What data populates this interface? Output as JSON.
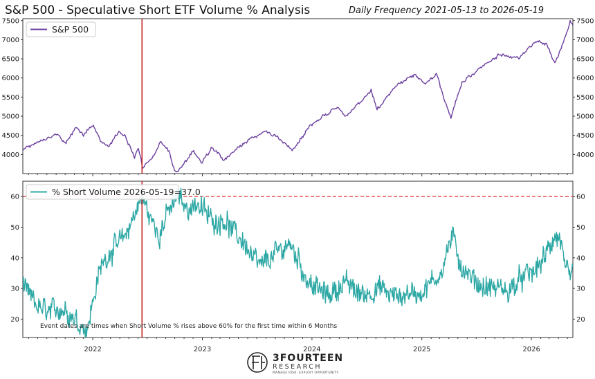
{
  "title": "S&P 500 - Speculative Short ETF Volume % Analysis",
  "subtitle": "Daily Frequency 2021-05-13 to 2026-05-19",
  "note": "Event dates are times when Short Volume % rises above 60% for the first time within 6 Months",
  "logo": {
    "name": "3FOURTEEN",
    "sub": "RESEARCH",
    "tagline": "MANAGE RISK. EXPLOIT OPPORTUNITY."
  },
  "colors": {
    "spx": "#6b3fa0",
    "short": "#2ea8a5",
    "event": "#c62828",
    "threshold": "#e53935"
  },
  "chart_data": [
    {
      "type": "line",
      "x_range": [
        "2021-05-13",
        "2026-05-19"
      ],
      "ylim": [
        3500,
        7550
      ],
      "y_ticks": [
        4000,
        4500,
        5000,
        5500,
        6000,
        6500,
        7000,
        7500
      ],
      "x_ticks": [
        "2022",
        "2023",
        "2024",
        "2025",
        "2026"
      ],
      "legend": "S&P 500",
      "legend_position": "top-left",
      "event_dates": [
        "2022-06-14"
      ],
      "series": [
        {
          "name": "S&P 500",
          "points": [
            [
              "2021-05-13",
              4110
            ],
            [
              "2021-06-15",
              4250
            ],
            [
              "2021-07-15",
              4360
            ],
            [
              "2021-08-15",
              4460
            ],
            [
              "2021-09-02",
              4530
            ],
            [
              "2021-10-04",
              4300
            ],
            [
              "2021-11-05",
              4700
            ],
            [
              "2021-12-01",
              4520
            ],
            [
              "2022-01-03",
              4790
            ],
            [
              "2022-01-27",
              4330
            ],
            [
              "2022-02-24",
              4230
            ],
            [
              "2022-03-29",
              4630
            ],
            [
              "2022-04-20",
              4460
            ],
            [
              "2022-05-20",
              3900
            ],
            [
              "2022-06-02",
              4180
            ],
            [
              "2022-06-16",
              3666
            ],
            [
              "2022-07-15",
              3860
            ],
            [
              "2022-08-16",
              4305
            ],
            [
              "2022-09-12",
              4110
            ],
            [
              "2022-09-30",
              3585
            ],
            [
              "2022-10-12",
              3577
            ],
            [
              "2022-11-30",
              4080
            ],
            [
              "2022-12-28",
              3783
            ],
            [
              "2023-02-02",
              4180
            ],
            [
              "2023-03-13",
              3855
            ],
            [
              "2023-04-28",
              4170
            ],
            [
              "2023-06-15",
              4425
            ],
            [
              "2023-07-31",
              4590
            ],
            [
              "2023-08-31",
              4500
            ],
            [
              "2023-10-27",
              4117
            ],
            [
              "2023-12-29",
              4770
            ],
            [
              "2024-03-28",
              5250
            ],
            [
              "2024-04-19",
              4967
            ],
            [
              "2024-07-16",
              5667
            ],
            [
              "2024-08-05",
              5186
            ],
            [
              "2024-10-18",
              5865
            ],
            [
              "2024-12-06",
              6090
            ],
            [
              "2025-01-13",
              5836
            ],
            [
              "2025-02-19",
              6144
            ],
            [
              "2025-03-13",
              5521
            ],
            [
              "2025-04-08",
              4982
            ],
            [
              "2025-05-15",
              5900
            ],
            [
              "2025-07-15",
              6250
            ],
            [
              "2025-09-15",
              6600
            ],
            [
              "2025-11-20",
              6540
            ],
            [
              "2026-01-15",
              6950
            ],
            [
              "2026-02-20",
              6900
            ],
            [
              "2026-03-20",
              6350
            ],
            [
              "2026-04-10",
              6800
            ],
            [
              "2026-04-30",
              7220
            ],
            [
              "2026-05-10",
              7460
            ],
            [
              "2026-05-19",
              7380
            ]
          ]
        }
      ]
    },
    {
      "type": "line",
      "x_range": [
        "2021-05-13",
        "2026-05-19"
      ],
      "ylim": [
        14,
        65
      ],
      "y_ticks": [
        20,
        30,
        40,
        50,
        60
      ],
      "x_ticks": [
        "2022",
        "2023",
        "2024",
        "2025",
        "2026"
      ],
      "legend": "% Short Volume 2026-05-19=37.0",
      "legend_position": "top-left",
      "threshold": 60,
      "event_dates": [
        "2022-06-14"
      ],
      "series": [
        {
          "name": "% Short Volume",
          "points": [
            [
              "2021-05-13",
              30
            ],
            [
              "2021-06-15",
              26
            ],
            [
              "2021-07-15",
              23
            ],
            [
              "2021-08-15",
              22
            ],
            [
              "2021-09-15",
              24
            ],
            [
              "2021-10-15",
              22
            ],
            [
              "2021-11-15",
              19
            ],
            [
              "2021-12-15",
              17
            ],
            [
              "2022-01-10",
              30
            ],
            [
              "2022-02-01",
              38
            ],
            [
              "2022-02-25",
              42
            ],
            [
              "2022-03-20",
              44
            ],
            [
              "2022-04-15",
              46
            ],
            [
              "2022-05-10",
              52
            ],
            [
              "2022-06-14",
              60
            ],
            [
              "2022-07-15",
              52
            ],
            [
              "2022-08-10",
              48
            ],
            [
              "2022-09-10",
              55
            ],
            [
              "2022-10-12",
              60
            ],
            [
              "2022-11-10",
              56
            ],
            [
              "2022-12-15",
              58
            ],
            [
              "2023-01-15",
              54
            ],
            [
              "2023-02-15",
              52
            ],
            [
              "2023-03-15",
              53
            ],
            [
              "2023-04-15",
              48
            ],
            [
              "2023-05-15",
              46
            ],
            [
              "2023-06-15",
              40
            ],
            [
              "2023-07-15",
              37
            ],
            [
              "2023-08-15",
              40
            ],
            [
              "2023-09-15",
              42
            ],
            [
              "2023-10-15",
              45
            ],
            [
              "2023-11-15",
              40
            ],
            [
              "2023-12-15",
              33
            ],
            [
              "2024-01-15",
              30
            ],
            [
              "2024-02-15",
              28
            ],
            [
              "2024-03-15",
              29
            ],
            [
              "2024-04-15",
              32
            ],
            [
              "2024-05-15",
              30
            ],
            [
              "2024-06-15",
              28
            ],
            [
              "2024-07-15",
              29
            ],
            [
              "2024-08-15",
              30
            ],
            [
              "2024-09-15",
              28
            ],
            [
              "2024-10-15",
              27
            ],
            [
              "2024-11-15",
              29
            ],
            [
              "2024-12-15",
              28
            ],
            [
              "2025-01-15",
              30
            ],
            [
              "2025-02-15",
              33
            ],
            [
              "2025-03-15",
              38
            ],
            [
              "2025-04-10",
              47
            ],
            [
              "2025-05-15",
              37
            ],
            [
              "2025-06-15",
              33
            ],
            [
              "2025-07-15",
              31
            ],
            [
              "2025-08-15",
              30
            ],
            [
              "2025-09-15",
              30
            ],
            [
              "2025-10-15",
              29
            ],
            [
              "2025-11-15",
              32
            ],
            [
              "2025-12-15",
              34
            ],
            [
              "2026-01-15",
              36
            ],
            [
              "2026-02-15",
              40
            ],
            [
              "2026-03-20",
              47
            ],
            [
              "2026-04-10",
              45
            ],
            [
              "2026-04-25",
              36
            ],
            [
              "2026-05-10",
              31
            ],
            [
              "2026-05-19",
              37
            ]
          ]
        }
      ]
    }
  ]
}
